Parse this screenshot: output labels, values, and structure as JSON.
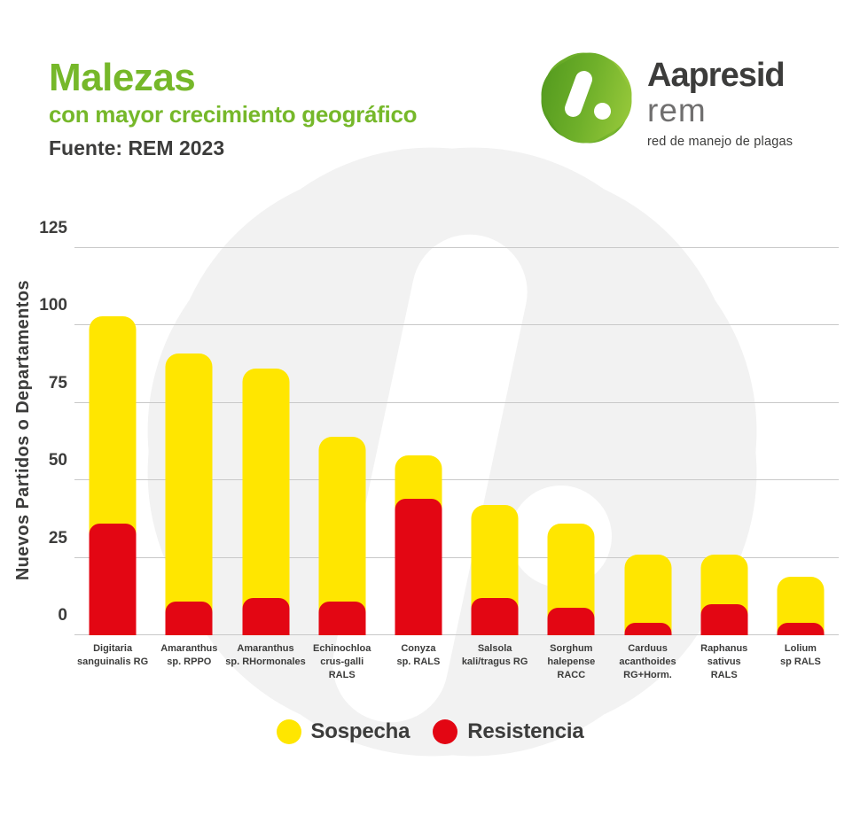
{
  "header": {
    "title": "Malezas",
    "subtitle": "con mayor crecimiento geográfico",
    "source": "Fuente: REM 2023"
  },
  "logo": {
    "brand": "Aapresid",
    "product": "rem",
    "tagline": "red de manejo de plagas",
    "badge_icon": "green-scalloped-badge-slash-dot"
  },
  "colors": {
    "accent_green": "#76B82A",
    "sospecha_yellow": "#FFE600",
    "resistencia_red": "#E30613",
    "dark_text": "#3C3C3B",
    "muted_text": "#706F6F",
    "gridline": "#C9C9C9",
    "watermark_gray": "#F2F2F2",
    "logo_green_light": "#9BCB3C",
    "logo_green_dark": "#52991E"
  },
  "chart_data": {
    "type": "bar",
    "stacked": true,
    "title": "Malezas con mayor crecimiento geográfico",
    "source": "REM 2023",
    "xlabel": "",
    "ylabel": "Nuevos Partidos o Departamentos",
    "ylim": [
      0,
      125
    ],
    "yticks": [
      0,
      25,
      50,
      75,
      100,
      125
    ],
    "grid": true,
    "legend_position": "bottom",
    "categories": [
      "Digitaria sanguinalis RG",
      "Amaranthus sp. RPPO",
      "Amaranthus sp. RHormonales",
      "Echinochloa crus-galli RALS",
      "Conyza sp. RALS",
      "Salsola kali/tragus RG",
      "Sorghum halepense RACC",
      "Carduus acanthoides RG+Horm.",
      "Raphanus sativus RALS",
      "Lolium sp RALS"
    ],
    "category_lines": [
      [
        "Digitaria",
        "sanguinalis RG"
      ],
      [
        "Amaranthus",
        "sp. RPPO"
      ],
      [
        "Amaranthus",
        "sp. RHormonales"
      ],
      [
        "Echinochloa",
        "crus-galli",
        "RALS"
      ],
      [
        "Conyza",
        "sp. RALS"
      ],
      [
        "Salsola",
        "kali/tragus RG"
      ],
      [
        "Sorghum",
        "halepense",
        "RACC"
      ],
      [
        "Carduus",
        "acanthoides",
        "RG+Horm."
      ],
      [
        "Raphanus",
        "sativus",
        "RALS"
      ],
      [
        "Lolium",
        "sp RALS"
      ]
    ],
    "series": [
      {
        "name": "Sospecha",
        "color": "#FFE600",
        "values": [
          67,
          80,
          74,
          53,
          14,
          30,
          27,
          22,
          16,
          15
        ]
      },
      {
        "name": "Resistencia",
        "color": "#E30613",
        "values": [
          36,
          11,
          12,
          11,
          44,
          12,
          9,
          4,
          10,
          4
        ]
      }
    ],
    "stack_totals": [
      103,
      91,
      86,
      64,
      58,
      42,
      36,
      26,
      26,
      19
    ]
  },
  "legend": {
    "items": [
      {
        "label": "Sospecha",
        "color": "#FFE600"
      },
      {
        "label": "Resistencia",
        "color": "#E30613"
      }
    ]
  }
}
